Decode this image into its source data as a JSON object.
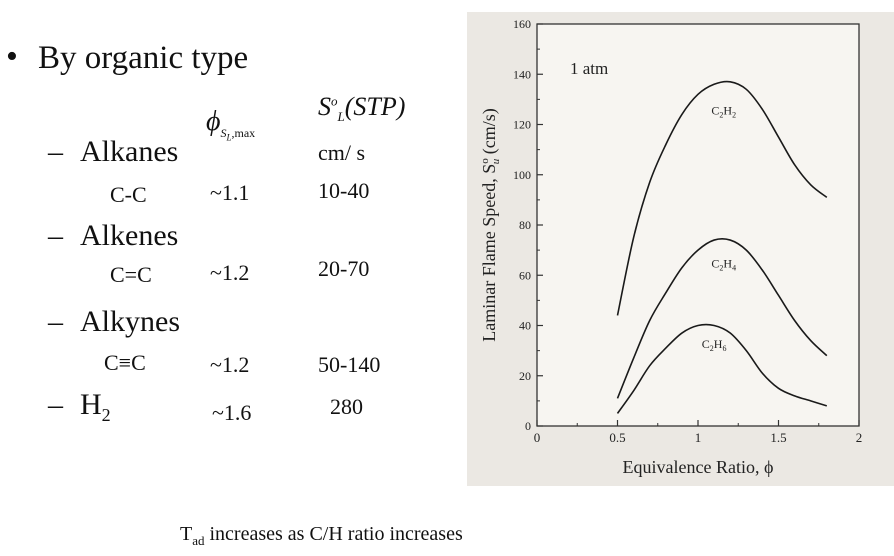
{
  "slide": {
    "bullet_glyph": "•",
    "heading": "By organic type",
    "dash": "–",
    "col_phi_symbol": "ϕ",
    "col_phi_sub_S": "S",
    "col_phi_sub_L": "L",
    "col_phi_sub_max": ",max",
    "col_s_symbol": "S",
    "col_s_sup": "o",
    "col_s_sub": "L",
    "col_s_stp": "(STP)",
    "units": "cm/ s",
    "rows": [
      {
        "category": "Alkanes",
        "bond": "C-C",
        "phi": "~1.1",
        "speed": "10-40"
      },
      {
        "category": "Alkenes",
        "bond": "C=C",
        "phi": "~1.2",
        "speed": "20-70"
      },
      {
        "category": "Alkynes",
        "bond": "C≡C",
        "phi": "~1.2",
        "speed": "50-140"
      },
      {
        "category": "H",
        "category_sub": "2",
        "bond": "",
        "phi": "~1.6",
        "speed": "280"
      }
    ],
    "footer_T": "T",
    "footer_sub": "ad",
    "footer_text": " increases as C/H ratio increases"
  },
  "chart_data": {
    "type": "line",
    "annotation": "1 atm",
    "xlabel": "Equivalence Ratio, ϕ",
    "ylabel": "Laminar Flame Speed, S",
    "ylabel_sup": "o",
    "ylabel_sub": "u",
    "ylabel_units": " (cm/s)",
    "xlim": [
      0,
      2
    ],
    "ylim": [
      0,
      160
    ],
    "xticks": [
      0,
      0.5,
      1,
      1.5,
      2
    ],
    "xtick_labels": [
      "0",
      "0.5",
      "1",
      "1.5",
      "2"
    ],
    "yticks": [
      0,
      20,
      40,
      60,
      80,
      100,
      120,
      140,
      160
    ],
    "ytick_labels": [
      "0",
      "20",
      "40",
      "60",
      "80",
      "100",
      "120",
      "140",
      "160"
    ],
    "grid": false,
    "series": [
      {
        "name": "C2H2",
        "label_main": "C",
        "label_n1": "2",
        "label_mid": "H",
        "label_n2": "2",
        "label_at": [
          1.16,
          124
        ],
        "x": [
          0.5,
          0.6,
          0.7,
          0.8,
          0.9,
          1.0,
          1.1,
          1.2,
          1.3,
          1.4,
          1.5,
          1.6,
          1.7,
          1.8
        ],
        "y": [
          44,
          75,
          97,
          112,
          124,
          132,
          136,
          137,
          134,
          126,
          115,
          104,
          96,
          91
        ]
      },
      {
        "name": "C2H4",
        "label_main": "C",
        "label_n1": "2",
        "label_mid": "H",
        "label_n2": "4",
        "label_at": [
          1.16,
          63
        ],
        "x": [
          0.5,
          0.6,
          0.7,
          0.8,
          0.9,
          1.0,
          1.1,
          1.2,
          1.3,
          1.4,
          1.5,
          1.6,
          1.7,
          1.8
        ],
        "y": [
          11,
          27,
          42,
          53,
          63,
          70,
          74,
          74,
          70,
          62,
          52,
          42,
          34,
          28
        ]
      },
      {
        "name": "C2H6",
        "label_main": "C",
        "label_n1": "2",
        "label_mid": "H",
        "label_n2": "6",
        "label_at": [
          1.1,
          31
        ],
        "x": [
          0.5,
          0.6,
          0.7,
          0.8,
          0.9,
          1.0,
          1.1,
          1.2,
          1.3,
          1.4,
          1.5,
          1.6,
          1.7,
          1.8
        ],
        "y": [
          5,
          14,
          24,
          31,
          37,
          40,
          40,
          37,
          30,
          21,
          15,
          12,
          10,
          8
        ]
      }
    ]
  }
}
